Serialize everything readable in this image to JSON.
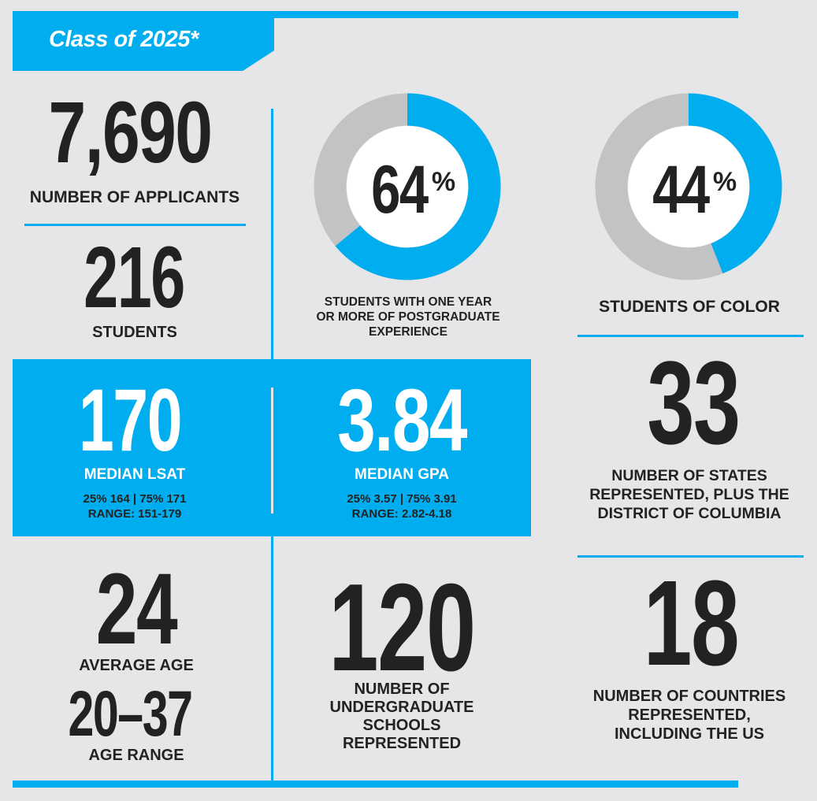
{
  "title": "Class of 2025*",
  "colors": {
    "accent": "#00aeef",
    "background": "#e6e6e8",
    "ring_remainder": "#c2c3c5",
    "text": "#222222"
  },
  "applicants": {
    "value": "7,690",
    "label": "NUMBER OF APPLICANTS"
  },
  "students": {
    "value": "216",
    "label": "STUDENTS"
  },
  "postgrad": {
    "percent_number": "64",
    "percent_sign": "%",
    "fraction": 0.64,
    "label_line1": "STUDENTS WITH ONE YEAR",
    "label_line2": "OR MORE OF POSTGRADUATE",
    "label_line3": "EXPERIENCE"
  },
  "color": {
    "percent_number": "44",
    "percent_sign": "%",
    "fraction": 0.44,
    "label": "STUDENTS OF COLOR"
  },
  "lsat": {
    "value": "170",
    "label": "MEDIAN LSAT",
    "percentiles": "25% 164 | 75% 171",
    "range": "RANGE: 151-179"
  },
  "gpa": {
    "value": "3.84",
    "label": "MEDIAN GPA",
    "percentiles": "25% 3.57 | 75% 3.91",
    "range": "RANGE: 2.82-4.18"
  },
  "states": {
    "value": "33",
    "label_line1": "NUMBER OF STATES",
    "label_line2": "REPRESENTED, PLUS THE",
    "label_line3": "DISTRICT OF COLUMBIA"
  },
  "age": {
    "value": "24",
    "label": "AVERAGE AGE",
    "range_value": "20–37",
    "range_label": "AGE RANGE"
  },
  "undergrad": {
    "value": "120",
    "label_line1": "NUMBER OF",
    "label_line2": "UNDERGRADUATE",
    "label_line3": "SCHOOLS",
    "label_line4": "REPRESENTED"
  },
  "countries": {
    "value": "18",
    "label_line1": "NUMBER OF COUNTRIES",
    "label_line2": "REPRESENTED,",
    "label_line3": "INCLUDING THE US"
  }
}
